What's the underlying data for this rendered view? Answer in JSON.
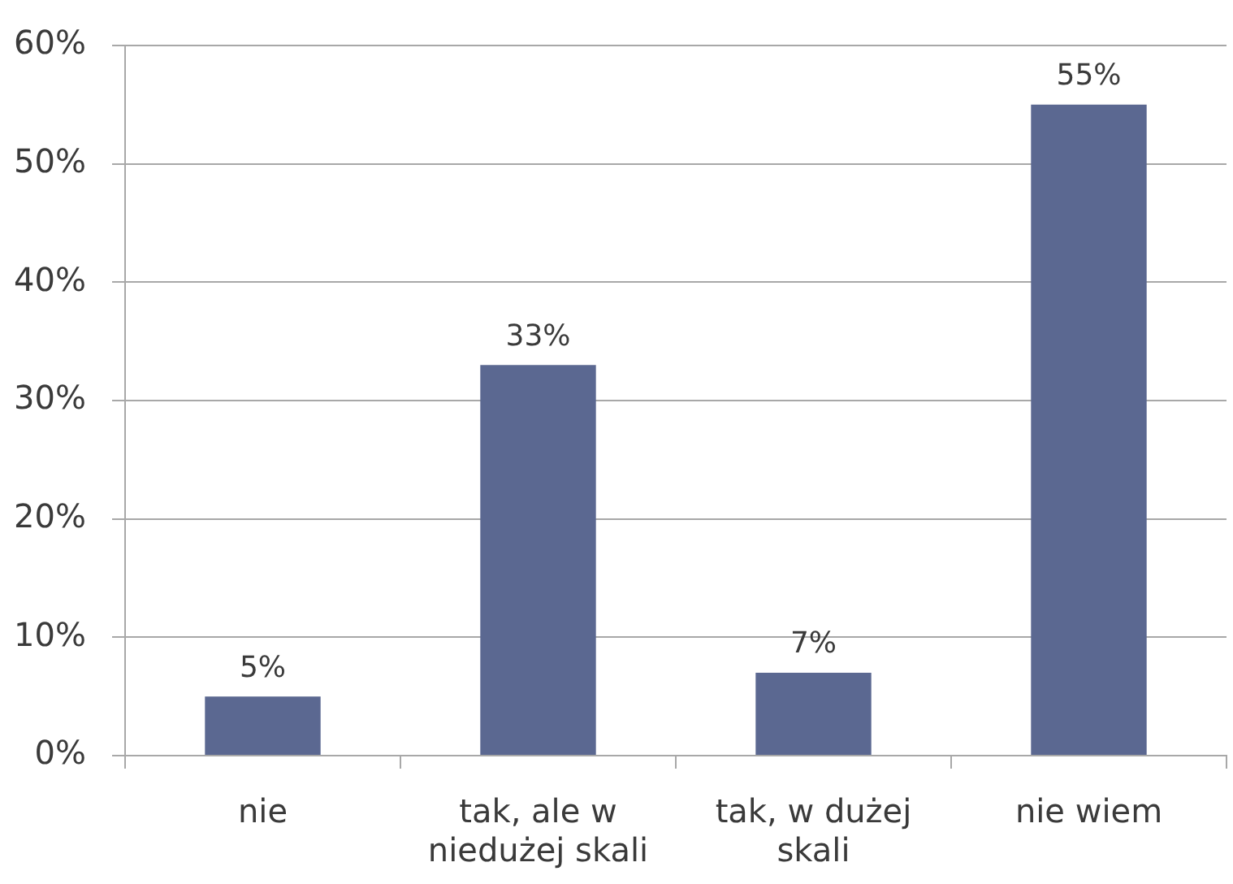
{
  "chart_data": {
    "type": "bar",
    "categories": [
      "nie",
      "tak, ale w niedużej skali",
      "tak, w dużej skali",
      "nie wiem"
    ],
    "values": [
      5,
      33,
      7,
      55
    ],
    "color": "#5b6891",
    "value_labels": [
      "5%",
      "33%",
      "7%",
      "55%"
    ],
    "ylim": [
      0,
      60
    ],
    "yticks": [
      {
        "value": 0,
        "label": "0%"
      },
      {
        "value": 10,
        "label": "10%"
      },
      {
        "value": 20,
        "label": "20%"
      },
      {
        "value": 30,
        "label": "30%"
      },
      {
        "value": 40,
        "label": "40%"
      },
      {
        "value": 50,
        "label": "50%"
      },
      {
        "value": 60,
        "label": "60%"
      }
    ],
    "grid": "y",
    "legend": false
  }
}
